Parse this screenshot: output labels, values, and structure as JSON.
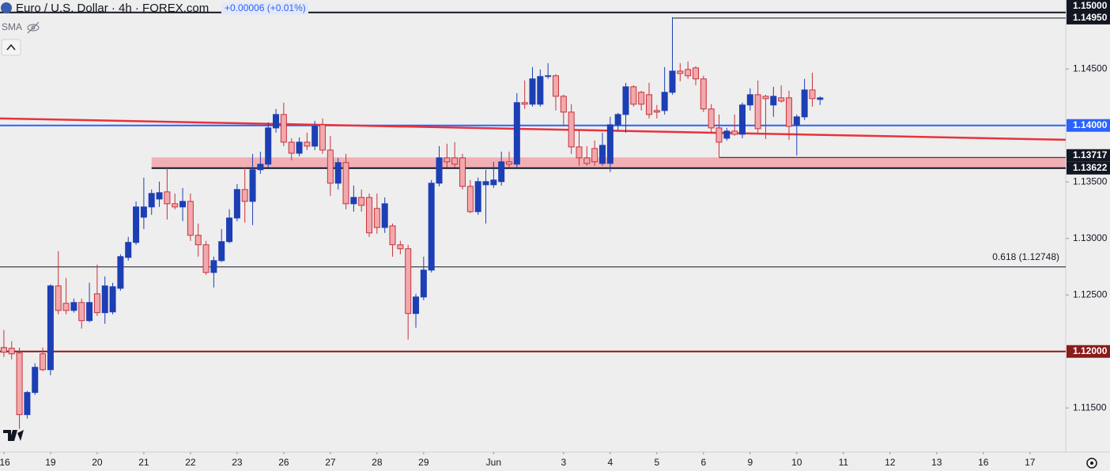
{
  "chart_data": {
    "type": "candlestick",
    "title": "Euro / U.S. Dollar · 4h · FOREX.com",
    "change": "+0.00006 (+0.01%)",
    "indicator": "SMA",
    "up_color": "#1c3fb5",
    "down_color": "#f2a9ad",
    "down_edge_color": "#c8323c",
    "open": [
      1.12035,
      1.12028,
      1.11986,
      1.11441,
      1.11637,
      1.11979,
      1.11839,
      1.1258,
      1.12426,
      1.12363,
      1.12433,
      1.12273,
      1.1251,
      1.12343,
      1.1235,
      1.12559,
      1.12832,
      1.12965,
      1.13188,
      1.13279,
      1.13349,
      1.13412,
      1.13307,
      1.13279,
      1.13328,
      1.13028,
      1.12944,
      1.12699,
      1.12804,
      1.12972,
      1.13181,
      1.13433,
      1.13328,
      1.13608,
      1.13657,
      1.13978,
      1.14097,
      1.13852,
      1.13754,
      1.13852,
      1.13817,
      1.14006,
      1.13782,
      1.13489,
      1.13671,
      1.13307,
      1.13363,
      1.13363,
      1.13265,
      1.13097,
      1.13111,
      1.12944,
      1.12909,
      1.12336,
      1.12482,
      1.1272,
      1.13489,
      1.13713,
      1.13713,
      1.13713,
      1.13461,
      1.13237,
      1.13475,
      1.13475,
      1.13503,
      1.13678,
      1.13657,
      1.14202,
      1.14188,
      1.14188,
      1.14433,
      1.1444,
      1.14258,
      1.14118,
      1.1381,
      1.13713,
      1.13796,
      1.13664,
      1.13664,
      1.14006,
      1.14097,
      1.14342,
      1.14293,
      1.14272,
      1.14132,
      1.14132,
      1.14293,
      1.14481,
      1.14495,
      1.14509,
      1.14412,
      1.14146,
      1.13978,
      1.13887,
      1.1395,
      1.13922,
      1.14181,
      1.14272,
      1.14258,
      1.14181,
      1.14244,
      1.14244,
      1.14006,
      1.14076,
      1.14314,
      1.1423
    ],
    "high": [
      1.12189,
      1.12091,
      1.12035,
      1.11651,
      1.11895,
      1.12035,
      1.12594,
      1.12888,
      1.1265,
      1.12468,
      1.12468,
      1.12608,
      1.12769,
      1.12664,
      1.12608,
      1.1286,
      1.13014,
      1.13328,
      1.13538,
      1.13433,
      1.13503,
      1.13622,
      1.13398,
      1.13447,
      1.13398,
      1.13132,
      1.12979,
      1.12839,
      1.13083,
      1.13258,
      1.13482,
      1.13629,
      1.13748,
      1.13768,
      1.14027,
      1.14146,
      1.14202,
      1.13887,
      1.13894,
      1.13936,
      1.14041,
      1.14062,
      1.13908,
      1.13713,
      1.13748,
      1.13468,
      1.13433,
      1.13398,
      1.13398,
      1.13363,
      1.13132,
      1.12979,
      1.12944,
      1.1251,
      1.12839,
      1.13517,
      1.13817,
      1.13838,
      1.13852,
      1.13748,
      1.13517,
      1.13538,
      1.13608,
      1.13678,
      1.13768,
      1.13768,
      1.14286,
      1.14398,
      1.14516,
      1.14495,
      1.14551,
      1.14453,
      1.14272,
      1.14188,
      1.13957,
      1.13817,
      1.13866,
      1.13936,
      1.14076,
      1.14111,
      1.14377,
      1.14356,
      1.14307,
      1.14377,
      1.14181,
      1.14516,
      1.14957,
      1.14551,
      1.14565,
      1.14523,
      1.1444,
      1.14188,
      1.14097,
      1.13978,
      1.14097,
      1.14202,
      1.14328,
      1.14398,
      1.14272,
      1.14342,
      1.14356,
      1.14307,
      1.14097,
      1.14412,
      1.14467,
      1.14258
    ],
    "low": [
      1.11951,
      1.1193,
      1.11315,
      1.11406,
      1.11616,
      1.11825,
      1.1179,
      1.12329,
      1.12329,
      1.12343,
      1.12203,
      1.12259,
      1.12315,
      1.12245,
      1.12329,
      1.12538,
      1.12804,
      1.12944,
      1.13083,
      1.13209,
      1.13279,
      1.13167,
      1.13258,
      1.13153,
      1.12979,
      1.12839,
      1.12678,
      1.12566,
      1.1279,
      1.12958,
      1.13153,
      1.13139,
      1.13118,
      1.13573,
      1.13629,
      1.13936,
      1.13817,
      1.13692,
      1.13727,
      1.13782,
      1.13782,
      1.13748,
      1.13377,
      1.13433,
      1.13258,
      1.13237,
      1.13237,
      1.13014,
      1.13042,
      1.13049,
      1.12839,
      1.1286,
      1.12105,
      1.1221,
      1.12454,
      1.12699,
      1.13461,
      1.13629,
      1.13629,
      1.13433,
      1.13223,
      1.13209,
      1.13132,
      1.13447,
      1.13468,
      1.13629,
      1.13629,
      1.14146,
      1.14167,
      1.14167,
      1.14412,
      1.14132,
      1.13992,
      1.13748,
      1.13643,
      1.13643,
      1.13643,
      1.13643,
      1.13587,
      1.13957,
      1.13936,
      1.14167,
      1.14132,
      1.14062,
      1.14062,
      1.14097,
      1.14272,
      1.14391,
      1.14412,
      1.14356,
      1.14118,
      1.13936,
      1.1372,
      1.13866,
      1.13908,
      1.13887,
      1.14132,
      1.13936,
      1.1388,
      1.14076,
      1.14202,
      1.13873,
      1.13734,
      1.14048,
      1.14167,
      1.14181
    ],
    "close": [
      1.11993,
      1.11979,
      1.11441,
      1.11637,
      1.1186,
      1.11839,
      1.1258,
      1.12363,
      1.12363,
      1.12433,
      1.12273,
      1.12433,
      1.12343,
      1.1258,
      1.12573,
      1.12839,
      1.12965,
      1.13279,
      1.13279,
      1.13398,
      1.13405,
      1.13307,
      1.13279,
      1.13328,
      1.13028,
      1.12944,
      1.12699,
      1.12804,
      1.12972,
      1.13181,
      1.13433,
      1.13328,
      1.13608,
      1.13657,
      1.13978,
      1.14097,
      1.13852,
      1.13754,
      1.13852,
      1.13817,
      1.13992,
      1.13782,
      1.13489,
      1.13671,
      1.13307,
      1.13363,
      1.13293,
      1.13049,
      1.13097,
      1.13307,
      1.12944,
      1.12909,
      1.12336,
      1.12482,
      1.1272,
      1.13489,
      1.13713,
      1.13678,
      1.13657,
      1.13461,
      1.13237,
      1.13503,
      1.13503,
      1.13517,
      1.13678,
      1.13657,
      1.14202,
      1.14188,
      1.14412,
      1.14433,
      1.1444,
      1.14258,
      1.14118,
      1.1381,
      1.13713,
      1.13664,
      1.13678,
      1.13824,
      1.14006,
      1.14097,
      1.14342,
      1.14188,
      1.14188,
      1.14097,
      1.14118,
      1.14293,
      1.14481,
      1.1446,
      1.1444,
      1.14412,
      1.14146,
      1.13978,
      1.13852,
      1.1395,
      1.13922,
      1.14181,
      1.14272,
      1.13971,
      1.14237,
      1.14258,
      1.14216,
      1.13992,
      1.14076,
      1.14314,
      1.14237,
      1.14244
    ],
    "xlim": [
      -0.5,
      136.6
    ],
    "xticks": [
      {
        "value": 0,
        "label": "16"
      },
      {
        "value": 6,
        "label": "19"
      },
      {
        "value": 12,
        "label": "20"
      },
      {
        "value": 18,
        "label": "21"
      },
      {
        "value": 24,
        "label": "22"
      },
      {
        "value": 30,
        "label": "23"
      },
      {
        "value": 36,
        "label": "26"
      },
      {
        "value": 42,
        "label": "27"
      },
      {
        "value": 48,
        "label": "28"
      },
      {
        "value": 54,
        "label": "29"
      },
      {
        "value": 63,
        "label": "Jun"
      },
      {
        "value": 72,
        "label": "3"
      },
      {
        "value": 78,
        "label": "4"
      },
      {
        "value": 84,
        "label": "5"
      },
      {
        "value": 90,
        "label": "6"
      },
      {
        "value": 96,
        "label": "9"
      },
      {
        "value": 102,
        "label": "10"
      },
      {
        "value": 108,
        "label": "11"
      },
      {
        "value": 114,
        "label": "12"
      },
      {
        "value": 120,
        "label": "13"
      },
      {
        "value": 126,
        "label": "16"
      },
      {
        "value": 132,
        "label": "17"
      }
    ],
    "ylim": [
      1.1111,
      1.1511
    ],
    "yticks": [
      {
        "value": 1.145,
        "label": "1.14500"
      },
      {
        "value": 1.135,
        "label": "1.13500"
      },
      {
        "value": 1.13,
        "label": "1.13000"
      },
      {
        "value": 1.125,
        "label": "1.12500"
      },
      {
        "value": 1.115,
        "label": "1.11500"
      }
    ],
    "grid": false,
    "zone": {
      "lower": 1.13622,
      "upper": 1.13717,
      "from": 19,
      "color": "#f2a9ad"
    },
    "trendline": {
      "x": [
        -0.5,
        136.6
      ],
      "y": [
        1.14062,
        1.13873
      ],
      "color": "#e8323c"
    },
    "fib_line": {
      "value": 1.12748,
      "label": "0.618 (1.12748)",
      "color": "#131722"
    },
    "levels": [
      {
        "value": 1.15,
        "label": "1.15000",
        "color": "#131722",
        "from": -0.5,
        "weight": 2
      },
      {
        "value": 1.1495,
        "label": "1.14950",
        "color": "#131722",
        "from": 86,
        "weight": 1
      },
      {
        "value": 1.14,
        "label": "1.14000",
        "color": "#2962ff",
        "from": -0.5,
        "weight": 2
      },
      {
        "value": 1.13717,
        "label": "1.13717",
        "color": "#131722",
        "from": 92,
        "weight": 1
      },
      {
        "value": 1.13622,
        "label": "1.13622",
        "color": "#131722",
        "from": 19,
        "weight": 2
      },
      {
        "value": 1.12,
        "label": "1.12000",
        "color": "#8b1a1a",
        "from": -0.5,
        "weight": 2
      }
    ]
  }
}
